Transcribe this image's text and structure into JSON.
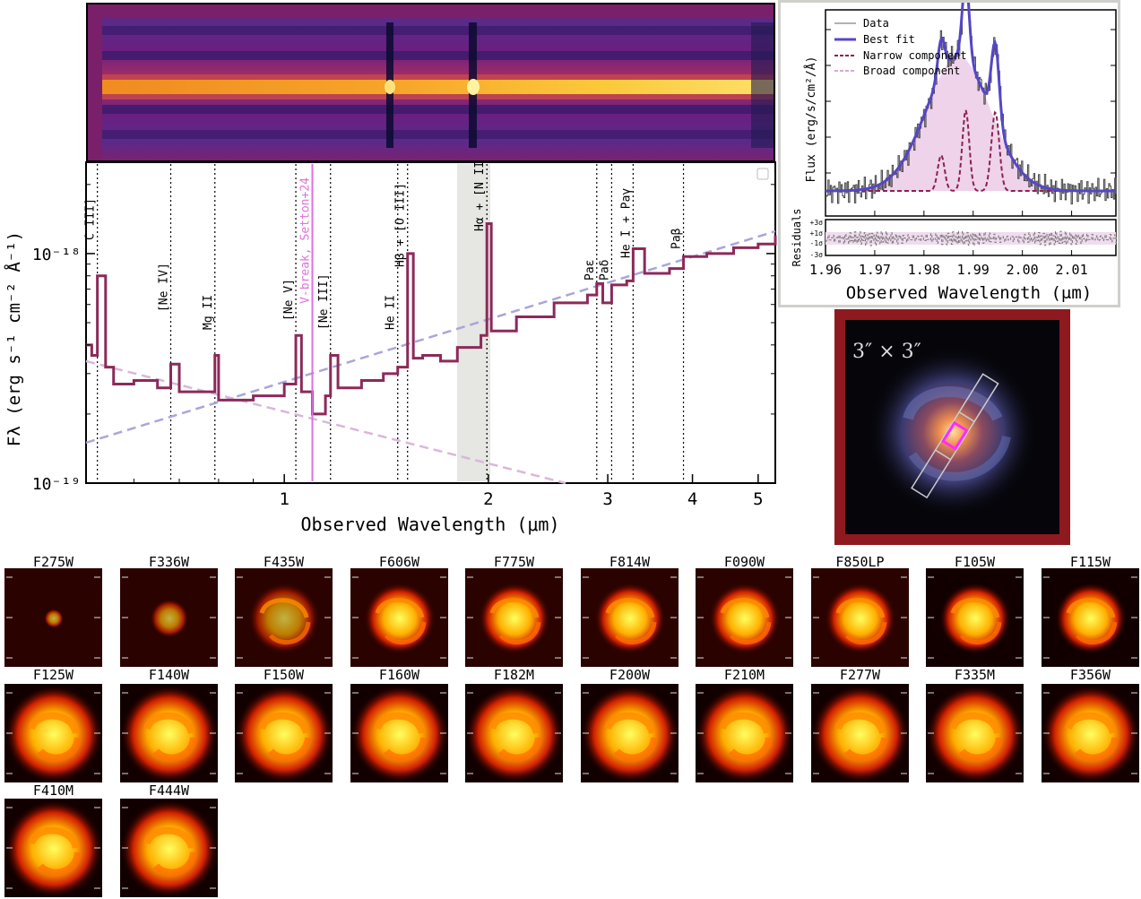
{
  "main_spectrum": {
    "ylabel": "Fλ (erg s⁻¹ cm⁻² Å⁻¹)",
    "xlabel": "Observed Wavelength (μm)",
    "xticks": [
      "1",
      "2",
      "3",
      "4",
      "5"
    ],
    "yticks": [
      "10⁻¹⁹",
      "10⁻¹⁸"
    ],
    "vbreak_label": "V-break, Setton+24",
    "lines": [
      {
        "label": "C III]",
        "x": 0.53
      },
      {
        "label": "[Ne IV]",
        "x": 0.68
      },
      {
        "label": "Mg II",
        "x": 0.79
      },
      {
        "label": "[Ne V]",
        "x": 1.04
      },
      {
        "label": "[Ne III]",
        "x": 1.17
      },
      {
        "label": "He II",
        "x": 1.47
      },
      {
        "label": "Hβ + [O III]",
        "x": 1.52
      },
      {
        "label": "Hα + [N II]",
        "x": 1.99
      },
      {
        "label": "Paε",
        "x": 2.89
      },
      {
        "label": "Paδ",
        "x": 3.04
      },
      {
        "label": "He I + Paγ",
        "x": 3.27
      },
      {
        "label": "Paβ",
        "x": 3.88
      }
    ]
  },
  "chart_data": [
    {
      "type": "line",
      "xlabel": "Observed Wavelength (μm)",
      "ylabel": "Fλ (erg s⁻¹ cm⁻² Å⁻¹)",
      "yscale": "log",
      "xscale": "log",
      "xlim": [
        0.51,
        5.3
      ],
      "ylim": [
        1e-19,
        2.5e-18
      ],
      "series": [
        {
          "values_x": [
            0.51,
            0.52,
            0.53,
            0.545,
            0.56,
            0.6,
            0.65,
            0.68,
            0.7,
            0.75,
            0.79,
            0.8,
            0.85,
            0.9,
            1.0,
            1.04,
            1.06,
            1.1,
            1.15,
            1.17,
            1.2,
            1.3,
            1.4,
            1.47,
            1.52,
            1.55,
            1.6,
            1.7,
            1.8,
            1.95,
            1.99,
            2.02,
            2.2,
            2.5,
            2.8,
            2.89,
            2.95,
            3.04,
            3.2,
            3.27,
            3.4,
            3.7,
            3.88,
            4.2,
            4.6,
            5.0,
            5.3
          ],
          "values_y": [
            4e-19,
            3.6e-19,
            8e-19,
            3.2e-19,
            2.7e-19,
            2.8e-19,
            2.6e-19,
            3.3e-19,
            2.5e-19,
            2.5e-19,
            3.6e-19,
            2.3e-19,
            2.3e-19,
            2.4e-19,
            2.7e-19,
            4.4e-19,
            2.5e-19,
            2e-19,
            2.4e-19,
            3.6e-19,
            2.6e-19,
            2.8e-19,
            3e-19,
            3.2e-19,
            1e-18,
            3.5e-19,
            3.6e-19,
            3.4e-19,
            3.9e-19,
            4.4e-19,
            1.35e-18,
            4.6e-19,
            5.3e-19,
            6.1e-19,
            6.6e-19,
            7.4e-19,
            6.1e-19,
            7.3e-19,
            7.6e-19,
            1.05e-18,
            8.2e-19,
            8.6e-19,
            9.7e-19,
            1e-18,
            1.06e-18,
            1.1e-18,
            1.2e-18
          ]
        }
      ]
    },
    {
      "type": "line",
      "xlabel": "Observed Wavelength (μm)",
      "ylabel": "Flux (erg/s/cm²/Å)",
      "xlim": [
        1.96,
        2.019
      ],
      "xticks": [
        "1.96",
        "1.97",
        "1.98",
        "1.99",
        "2.00",
        "2.01"
      ],
      "legend": [
        "Data",
        "Best fit",
        "Narrow component",
        "Broad component"
      ],
      "residual_label": "Residuals",
      "residual_ticks": [
        "+3σ",
        "+1σ",
        "-1σ",
        "-3σ"
      ]
    }
  ],
  "rgb_panel": {
    "label": "3″ × 3″"
  },
  "filters": [
    "F275W",
    "F336W",
    "F435W",
    "F606W",
    "F775W",
    "F814W",
    "F090W",
    "F850LP",
    "F105W",
    "F115W",
    "F125W",
    "F140W",
    "F150W",
    "F160W",
    "F182M",
    "F200W",
    "F210M",
    "F277W",
    "F335M",
    "F356W",
    "F410M",
    "F444W"
  ],
  "colors": {
    "spectrum": "#8c2a5a",
    "continuum_blue": "#a9a6da",
    "continuum_pink": "#d8b8d8",
    "vbreak": "#e070e0",
    "bestfit": "#5546c8",
    "frame": "#8e1a1f"
  }
}
